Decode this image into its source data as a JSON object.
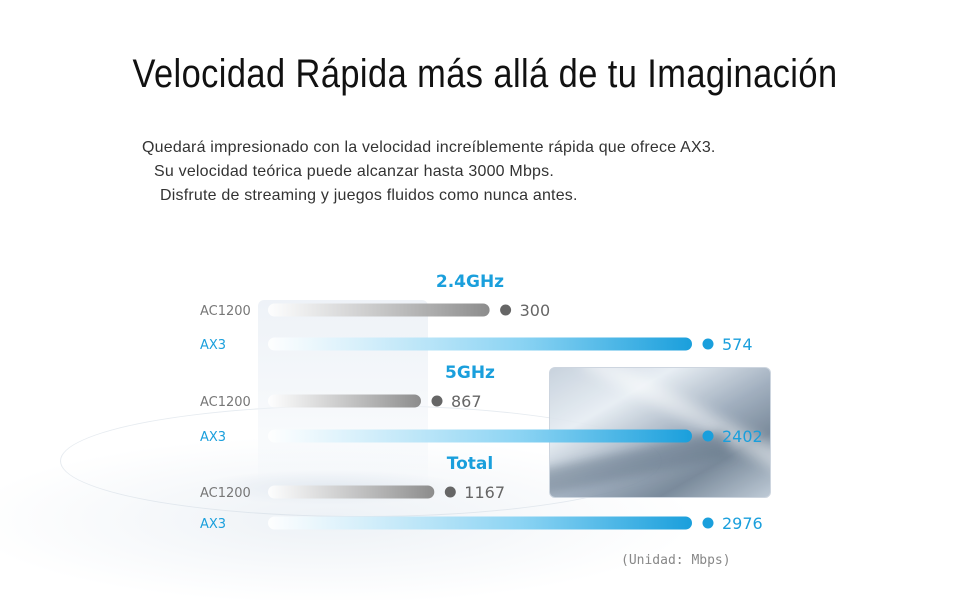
{
  "title": "Velocidad Rápida más allá de tu Imaginación",
  "intro_lines": [
    "Quedará impresionado con la velocidad increíblemente rápida que ofrece AX3.",
    "Su velocidad teórica puede alcanzar hasta 3000 Mbps.",
    "Disfrute de streaming y juegos fluidos como nunca antes."
  ],
  "unit_note": "(Unidad: Mbps)",
  "colors": {
    "accent": "#1a9fdc",
    "gray_bar": "#9a9a9a",
    "gray_text": "#777777",
    "gray_value": "#666666"
  },
  "chart_data": {
    "type": "bar",
    "orientation": "horizontal",
    "grouping": "per-band (each group has its own scale)",
    "series_names": [
      "AC1200",
      "AX3"
    ],
    "groups": [
      {
        "label": "2.4GHz",
        "values": [
          300,
          574
        ]
      },
      {
        "label": "5GHz",
        "values": [
          867,
          2402
        ]
      },
      {
        "label": "Total",
        "values": [
          1167,
          2976
        ]
      }
    ],
    "unit": "Mbps",
    "grid": false
  }
}
